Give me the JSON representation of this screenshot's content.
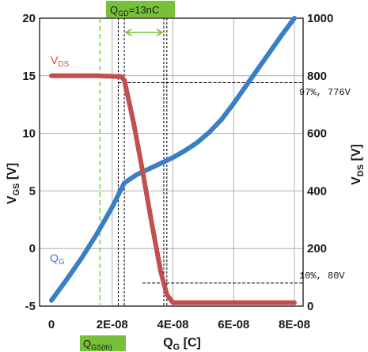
{
  "chart_data": {
    "type": "line",
    "title": "",
    "xlabel": {
      "main": "Q",
      "sub": "G",
      "unit": " [C]"
    },
    "ylabel_left": {
      "main": "V",
      "sub": "GS",
      "unit": " [V]"
    },
    "ylabel_right": {
      "main": "V",
      "sub": "DS",
      "unit": " [V]"
    },
    "xlim": [
      -1e-09,
      8.3e-08
    ],
    "ylim_left": [
      -5,
      20
    ],
    "ylim_right": [
      0,
      1000
    ],
    "x_ticks": [
      0,
      2e-08,
      4e-08,
      6e-08,
      8e-08
    ],
    "x_tick_labels": [
      "0",
      "2E-08",
      "4E-08",
      "6E-08",
      "8E-08"
    ],
    "y_left_ticks": [
      -5,
      0,
      5,
      10,
      15,
      20
    ],
    "y_left_tick_labels": [
      "-5",
      "0",
      "5",
      "10",
      "15",
      "20"
    ],
    "y_right_ticks": [
      0,
      200,
      400,
      600,
      800,
      1000
    ],
    "y_right_tick_labels": [
      "0",
      "200",
      "400",
      "600",
      "800",
      "1000"
    ],
    "grid": true,
    "series": [
      {
        "name": "Q_G",
        "label": {
          "main": "Q",
          "sub": "G"
        },
        "axis": "left",
        "color": "#3a7fc4",
        "x": [
          0,
          5e-09,
          1e-08,
          1.5e-08,
          2e-08,
          2.4e-08,
          2.8e-08,
          3.2e-08,
          3.6e-08,
          4e-08,
          4.4e-08,
          4.8e-08,
          5.2e-08,
          5.6e-08,
          6e-08,
          6.4e-08,
          6.8e-08,
          7.2e-08,
          7.6e-08,
          8e-08
        ],
        "values": [
          -4.5,
          -2.7,
          -0.8,
          1.3,
          3.6,
          5.7,
          6.4,
          6.9,
          7.4,
          7.9,
          8.5,
          9.2,
          10.1,
          11.2,
          12.6,
          14.1,
          15.6,
          17.1,
          18.6,
          20.0
        ]
      },
      {
        "name": "V_DS",
        "label": {
          "main": "V",
          "sub": "DS"
        },
        "axis": "right",
        "color": "#c0504d",
        "x": [
          0,
          5e-09,
          1e-08,
          1.5e-08,
          2e-08,
          2.3e-08,
          2.4e-08,
          2.7e-08,
          3e-08,
          3.3e-08,
          3.6e-08,
          3.8e-08,
          4e-08,
          4.5e-08,
          5e-08,
          6e-08,
          7e-08,
          8e-08
        ],
        "values": [
          800,
          800,
          800,
          800,
          798,
          797,
          785,
          640,
          470,
          290,
          120,
          40,
          12,
          12,
          12,
          12,
          12,
          12
        ]
      }
    ],
    "annotations": {
      "qgd": {
        "main": "Q",
        "sub": "GD",
        "rest": "=13nC",
        "x_start": 2.4e-08,
        "x_end": 3.7e-08
      },
      "qgs_th": {
        "main": "Q",
        "sub": "GS(th)",
        "x": 1.6e-08
      },
      "level_97": {
        "text": "97%, 776V",
        "vds": 776,
        "x_start": 2.2e-08,
        "x_end": 8.3e-08
      },
      "level_10": {
        "text": "10%, 80V",
        "vds": 80,
        "x_start": 3e-08,
        "x_end": 8.3e-08
      },
      "markers_x": [
        2.2e-08,
        2.4e-08,
        3.7e-08,
        3.8e-08
      ]
    },
    "colors": {
      "highlight": "#77c13a",
      "guide": "#6fcf3a"
    }
  }
}
